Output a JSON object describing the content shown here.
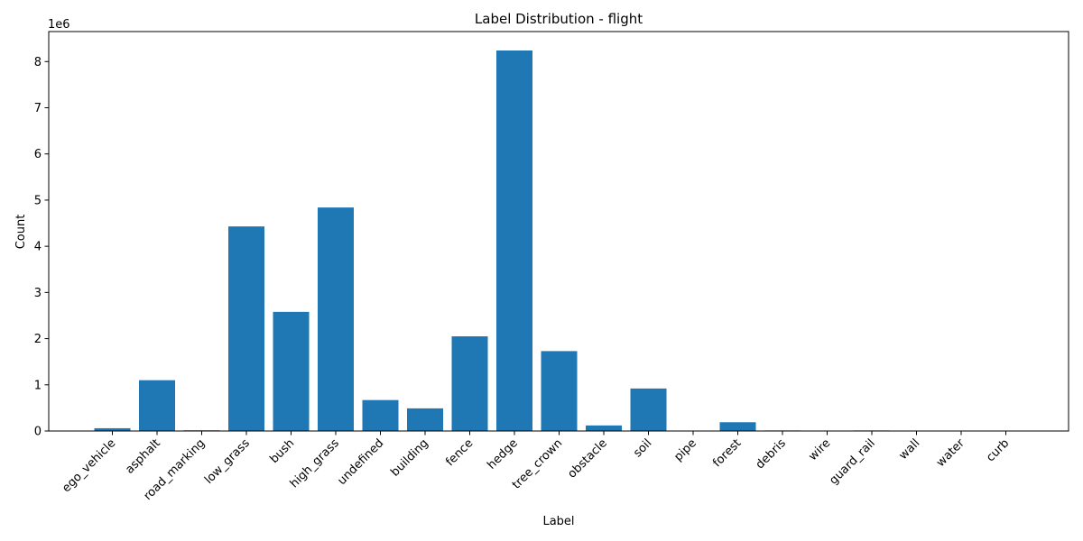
{
  "colors": {
    "bar": "#1f77b4",
    "axis": "#000000",
    "background": "#ffffff"
  },
  "chart_data": {
    "type": "bar",
    "title": "Label Distribution - flight",
    "xlabel": "Label",
    "ylabel": "Count",
    "y_offset_label": "1e6",
    "categories": [
      "ego_vehicle",
      "asphalt",
      "road_marking",
      "low_grass",
      "bush",
      "high_grass",
      "undefined",
      "building",
      "fence",
      "hedge",
      "tree_crown",
      "obstacle",
      "soil",
      "pipe",
      "forest",
      "debris",
      "wire",
      "guard_rail",
      "wall",
      "water",
      "curb"
    ],
    "values": [
      60000,
      1100000,
      15000,
      4430000,
      2580000,
      4840000,
      670000,
      490000,
      2050000,
      8240000,
      1730000,
      120000,
      920000,
      3000,
      190000,
      12000,
      2000,
      12000,
      1000,
      1000,
      1000
    ],
    "yticks": [
      0,
      1000000,
      2000000,
      3000000,
      4000000,
      5000000,
      6000000,
      7000000,
      8000000
    ],
    "ytick_labels": [
      "0",
      "1",
      "2",
      "3",
      "4",
      "5",
      "6",
      "7",
      "8"
    ],
    "ylim": [
      0,
      8650000
    ],
    "grid": false,
    "legend": "none"
  }
}
